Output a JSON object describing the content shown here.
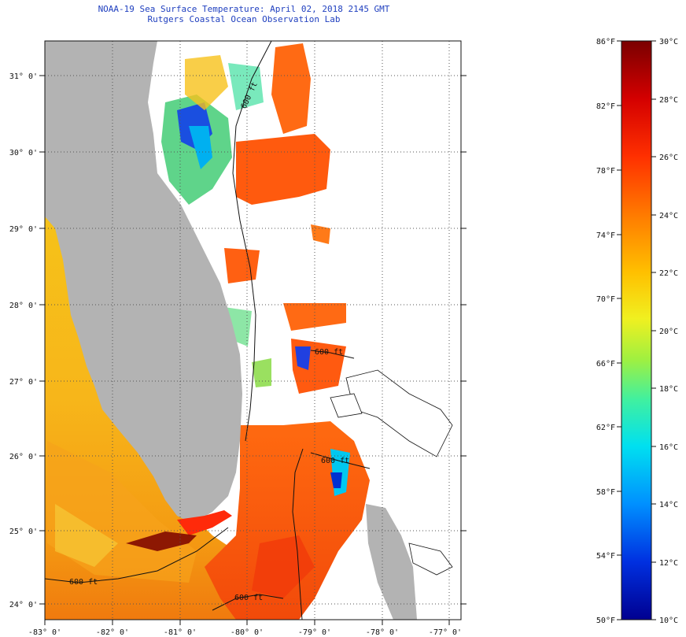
{
  "header": {
    "title": "NOAA-19 Sea Surface Temperature:  April 02, 2018 2145 GMT",
    "subtitle": "Rutgers Coastal Ocean Observation Lab"
  },
  "map": {
    "lat_labels": [
      "31° 0'",
      "30° 0'",
      "29° 0'",
      "28° 0'",
      "27° 0'",
      "26° 0'",
      "25° 0'",
      "24° 0'"
    ],
    "lon_labels": [
      "-83° 0'",
      "-82° 0'",
      "-81° 0'",
      "-80° 0'",
      "-79° 0'",
      "-78° 0'",
      "-77° 0'"
    ],
    "contour_labels": [
      "600 ft",
      "600 ft",
      "600 ft",
      "600 ft",
      "600 ft"
    ],
    "colors": {
      "land": "#b3b3b3",
      "no_data": "#ffffff",
      "gridline": "#555555"
    }
  },
  "colorbar": {
    "fahrenheit_labels": [
      "86°F",
      "82°F",
      "78°F",
      "74°F",
      "70°F",
      "66°F",
      "62°F",
      "58°F",
      "54°F",
      "50°F"
    ],
    "celsius_labels": [
      "30°C",
      "28°C",
      "26°C",
      "24°C",
      "22°C",
      "20°C",
      "18°C",
      "16°C",
      "14°C",
      "12°C",
      "10°C"
    ],
    "colors": [
      "#7a0000",
      "#d40000",
      "#ff3000",
      "#ff7a00",
      "#ffc000",
      "#f0f020",
      "#a0f040",
      "#40f0a0",
      "#00e0f0",
      "#0090ff",
      "#0030e0",
      "#000090"
    ]
  }
}
